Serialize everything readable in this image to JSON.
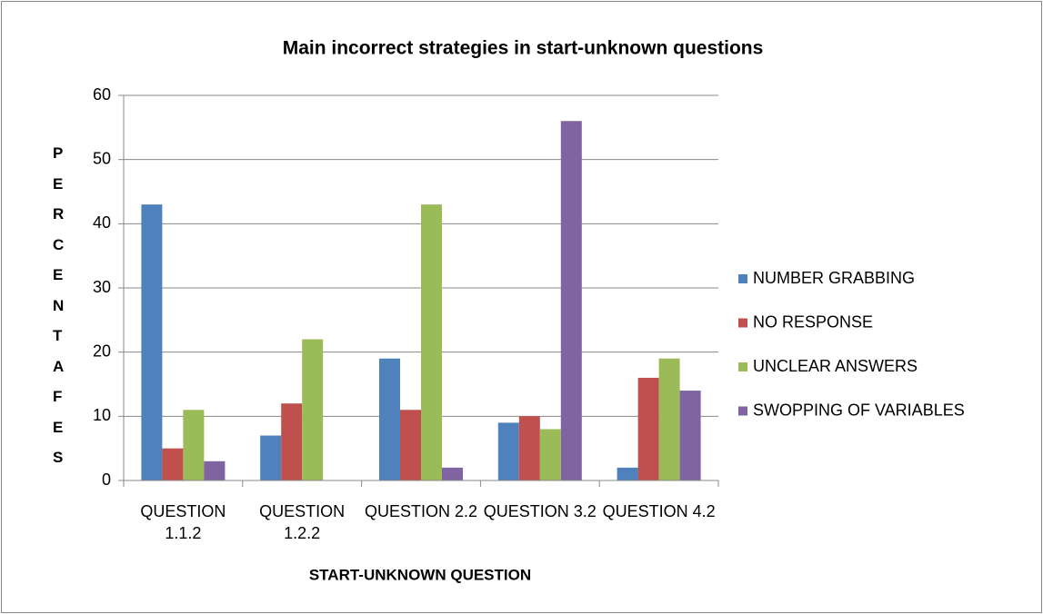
{
  "chart_data": {
    "type": "bar",
    "title": "Main incorrect strategies in start-unknown questions",
    "x_label": "START-UNKNOWN QUESTION",
    "y_label": "PERCENTAFES",
    "categories": [
      "QUESTION 1.1.2",
      "QUESTION 1.2.2",
      "QUESTION 2.2",
      "QUESTION 3.2",
      "QUESTION 4.2"
    ],
    "series": [
      {
        "name": "NUMBER GRABBING",
        "color": "#4f81bd",
        "values": [
          43,
          7,
          19,
          9,
          2
        ]
      },
      {
        "name": "NO RESPONSE",
        "color": "#c0504d",
        "values": [
          5,
          12,
          11,
          10,
          16
        ]
      },
      {
        "name": "UNCLEAR ANSWERS",
        "color": "#9bbb59",
        "values": [
          11,
          22,
          43,
          8,
          19
        ]
      },
      {
        "name": "SWOPPING OF VARIABLES",
        "color": "#8064a2",
        "values": [
          3,
          0,
          2,
          56,
          14
        ]
      }
    ],
    "ylim": [
      0,
      60
    ],
    "yticks": [
      0,
      10,
      20,
      30,
      40,
      50,
      60
    ],
    "grid": true,
    "legend": "right"
  }
}
